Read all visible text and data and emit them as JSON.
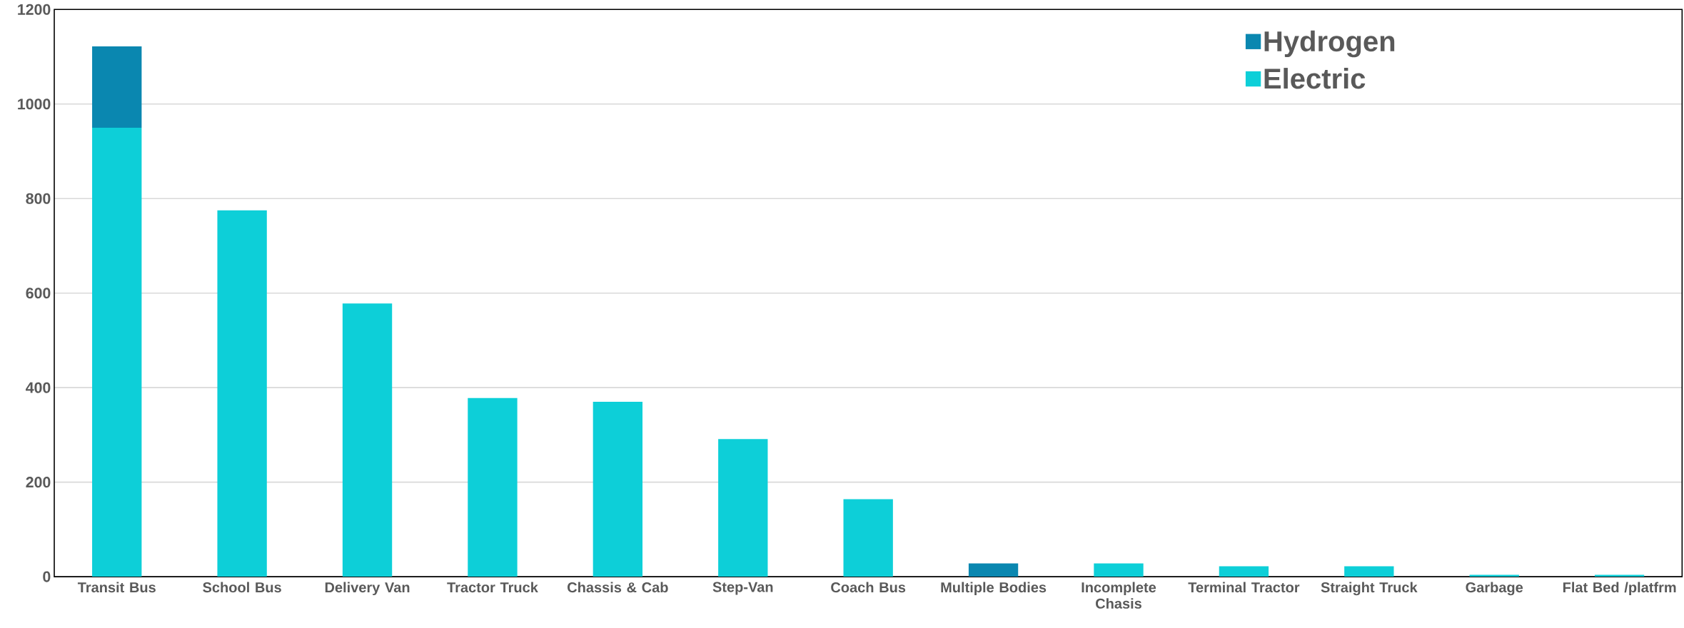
{
  "chart_data": {
    "type": "bar",
    "stacked": true,
    "categories": [
      "Transit Bus",
      "School Bus",
      "Delivery Van",
      "Tractor Truck",
      "Chassis & Cab",
      "Step-Van",
      "Coach Bus",
      "Multiple Bodies",
      "Incomplete Chasis",
      "Terminal Tractor",
      "Straight Truck",
      "Garbage",
      "Flat Bed /platfrm"
    ],
    "series": [
      {
        "name": "Electric",
        "color": "#0dcfd8",
        "values": [
          950,
          775,
          578,
          378,
          370,
          291,
          164,
          0,
          28,
          22,
          22,
          4,
          4
        ]
      },
      {
        "name": "Hydrogen",
        "color": "#0a87b0",
        "values": [
          172,
          0,
          0,
          0,
          0,
          0,
          0,
          28,
          0,
          0,
          0,
          0,
          0
        ]
      }
    ],
    "ylim": [
      0,
      1200
    ],
    "yticks": [
      0,
      200,
      400,
      600,
      800,
      1000,
      1200
    ],
    "grid": "y",
    "legend": "top right"
  }
}
